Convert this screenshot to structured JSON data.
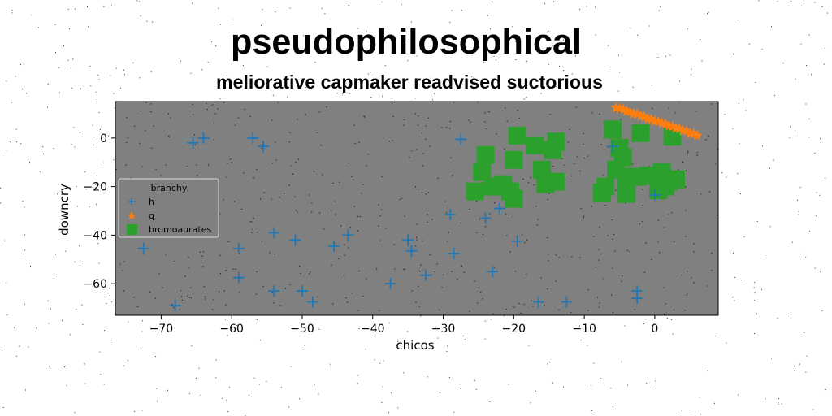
{
  "chart_data": {
    "type": "scatter",
    "title": "pseudophilosophical",
    "subtitle": "meliorative capmaker readvised suctorious",
    "xlabel": "chicos",
    "ylabel": "downcry",
    "xlim": [
      -76.5,
      9
    ],
    "ylim": [
      -73,
      15
    ],
    "xticks": [
      -70,
      -60,
      -50,
      -40,
      -30,
      -20,
      -10,
      0
    ],
    "yticks": [
      0,
      -20,
      -40,
      -60
    ],
    "xtick_labels": [
      "−70",
      "−60",
      "−50",
      "−40",
      "−30",
      "−20",
      "−10",
      "0"
    ],
    "ytick_labels": [
      "0",
      "−20",
      "−40",
      "−60"
    ],
    "grid": false,
    "legend": {
      "title": "branchy",
      "placement": "center-left"
    },
    "colors": {
      "plot_bg": "#808080",
      "h": "#1f77b4",
      "q": "#ff7f0e",
      "bromoaurates": "#2ca02c"
    },
    "series": [
      {
        "name": "h",
        "marker": "plus",
        "points": [
          [
            -65.5,
            -2
          ],
          [
            -64,
            0
          ],
          [
            -57,
            0
          ],
          [
            -55.5,
            -3.5
          ],
          [
            -27.5,
            -0.5
          ],
          [
            -6,
            -3.5
          ],
          [
            -72.5,
            -45.5
          ],
          [
            -68,
            -69
          ],
          [
            -59,
            -45.5
          ],
          [
            -59,
            -57.5
          ],
          [
            -54,
            -39
          ],
          [
            -54,
            -63
          ],
          [
            -51,
            -42
          ],
          [
            -50,
            -63
          ],
          [
            -48.5,
            -67.5
          ],
          [
            -45.5,
            -44.5
          ],
          [
            -43.5,
            -40
          ],
          [
            -37.5,
            -60
          ],
          [
            -35,
            -42
          ],
          [
            -34.5,
            -46.5
          ],
          [
            -32.5,
            -56.5
          ],
          [
            -29,
            -31.5
          ],
          [
            -28.5,
            -47.5
          ],
          [
            -24,
            -33
          ],
          [
            -23,
            -55
          ],
          [
            -22,
            -29
          ],
          [
            -19.5,
            -42.5
          ],
          [
            -16.5,
            -67.5
          ],
          [
            -12.5,
            -67.5
          ],
          [
            -2.5,
            -63
          ],
          [
            -2.5,
            -66
          ],
          [
            0,
            -23.5
          ]
        ]
      },
      {
        "name": "q",
        "marker": "star",
        "points": [
          [
            -5,
            12
          ],
          [
            -4,
            11
          ],
          [
            -3,
            10
          ],
          [
            -2,
            9
          ],
          [
            -1,
            8
          ],
          [
            0,
            7
          ],
          [
            1,
            6
          ],
          [
            2,
            5
          ],
          [
            3,
            4
          ],
          [
            4,
            3
          ],
          [
            5,
            2
          ],
          [
            6,
            1
          ],
          [
            -4.5,
            11.8
          ],
          [
            -3.5,
            10.8
          ],
          [
            -2.5,
            9.8
          ],
          [
            -1.5,
            8.8
          ],
          [
            -0.5,
            7.8
          ],
          [
            0.5,
            6.8
          ],
          [
            1.5,
            5.8
          ],
          [
            2.5,
            4.8
          ],
          [
            3.5,
            3.8
          ],
          [
            4.5,
            2.8
          ],
          [
            5.5,
            1.8
          ],
          [
            -5.5,
            12.5
          ]
        ]
      },
      {
        "name": "bromoaurates",
        "marker": "square",
        "points": [
          [
            -19.5,
            1
          ],
          [
            -17,
            -3
          ],
          [
            -14.5,
            -5
          ],
          [
            -14,
            -1.5
          ],
          [
            -16,
            -13
          ],
          [
            -14,
            -18
          ],
          [
            -15.5,
            -19
          ],
          [
            -20,
            -9
          ],
          [
            -24,
            -7
          ],
          [
            -24.5,
            -14
          ],
          [
            -23,
            -20
          ],
          [
            -21.5,
            -19
          ],
          [
            -20.5,
            -22
          ],
          [
            -20,
            -25
          ],
          [
            -25.5,
            -22
          ],
          [
            -6,
            3.5
          ],
          [
            -2,
            2
          ],
          [
            -5,
            -4
          ],
          [
            -4.5,
            -8
          ],
          [
            -5.5,
            -13
          ],
          [
            -4,
            -16
          ],
          [
            -2.5,
            -16
          ],
          [
            -7,
            -20
          ],
          [
            -7.5,
            -22.5
          ],
          [
            -4,
            -23
          ],
          [
            -1,
            -15.5
          ],
          [
            1,
            -14
          ],
          [
            2,
            -18
          ],
          [
            0.5,
            -21.5
          ],
          [
            3,
            -17
          ],
          [
            2.5,
            0.5
          ],
          [
            1.5,
            -20
          ]
        ]
      }
    ]
  }
}
